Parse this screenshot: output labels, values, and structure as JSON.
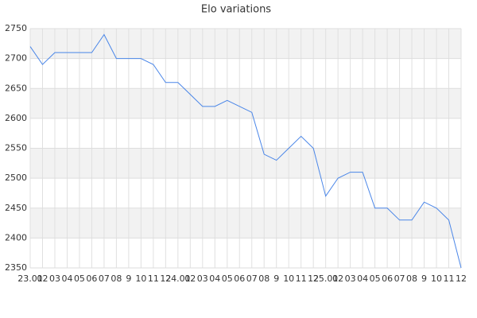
{
  "chart_data": {
    "type": "line",
    "title": "Elo variations",
    "categories": [
      "23.01",
      "02",
      "03",
      "04",
      "05",
      "06",
      "07",
      "08",
      "9",
      "10",
      "11",
      "12",
      "24.01",
      "02",
      "03",
      "04",
      "05",
      "06",
      "07",
      "08",
      "9",
      "10",
      "11",
      "12",
      "25.01",
      "02",
      "03",
      "04",
      "05",
      "06",
      "07",
      "08",
      "9",
      "10",
      "11",
      "12"
    ],
    "series": [
      {
        "color": "#4a86e8",
        "values": [
          2720,
          2690,
          2710,
          2710,
          2710,
          2710,
          2740,
          2700,
          2700,
          2700,
          2690,
          2660,
          2660,
          2640,
          2620,
          2620,
          2630,
          2620,
          2610,
          2540,
          2530,
          2550,
          2570,
          2550,
          2470,
          2500,
          2510,
          2510,
          2450,
          2450,
          2430,
          2430,
          2460,
          2450,
          2430,
          2350
        ]
      }
    ],
    "ylim": [
      2350,
      2750
    ],
    "yticks": [
      2350,
      2400,
      2450,
      2500,
      2550,
      2600,
      2650,
      2700,
      2750
    ],
    "grid": true
  }
}
